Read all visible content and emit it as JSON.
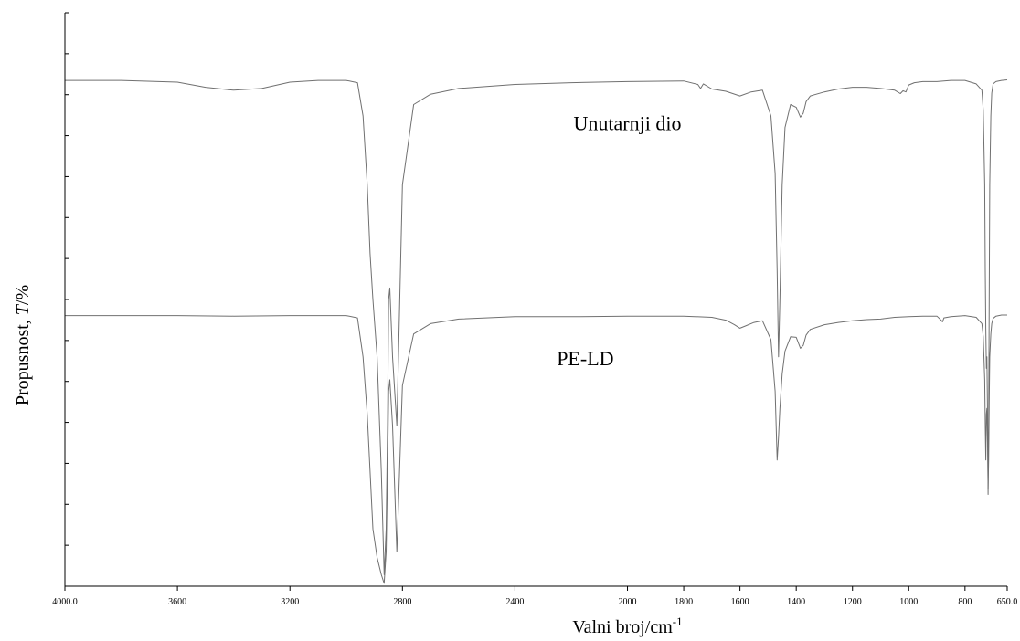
{
  "chart_data": {
    "type": "line",
    "title": "",
    "xlabel": "Valni broj/cm",
    "xlabel_superscript": "-1",
    "ylabel_prefix": "Propusnost, ",
    "ylabel_italic": "T",
    "ylabel_suffix": "/%",
    "xlim": [
      4000.0,
      650.0
    ],
    "ylim": [
      0,
      100
    ],
    "x_reversed": true,
    "x_ticks": [
      4000,
      3600,
      3200,
      2800,
      2400,
      2000,
      1800,
      1600,
      1400,
      1200,
      1000,
      800,
      650
    ],
    "x_tick_labels": [
      "4000.0",
      "3600",
      "3200",
      "2800",
      "2400",
      "2000",
      "1800",
      "1600",
      "1400",
      "1200",
      "1000",
      "800",
      "650.0"
    ],
    "y_tick_labels_shown": false,
    "y_tick_count": 14,
    "grid": false,
    "legend": "none",
    "line_color": "#707070",
    "series": [
      {
        "name": "Unutarnji dio",
        "x": [
          4000,
          3800,
          3600,
          3500,
          3400,
          3300,
          3200,
          3100,
          3000,
          2960,
          2940,
          2925,
          2915,
          2905,
          2890,
          2875,
          2865,
          2858,
          2853,
          2849,
          2845,
          2835,
          2820,
          2800,
          2760,
          2700,
          2600,
          2400,
          2200,
          2000,
          1800,
          1750,
          1740,
          1730,
          1700,
          1650,
          1600,
          1560,
          1520,
          1490,
          1475,
          1468,
          1463,
          1458,
          1450,
          1440,
          1420,
          1400,
          1385,
          1375,
          1365,
          1350,
          1300,
          1250,
          1200,
          1150,
          1100,
          1050,
          1030,
          1020,
          1010,
          1000,
          980,
          950,
          900,
          850,
          800,
          760,
          740,
          735,
          730,
          728,
          726,
          724,
          722,
          720,
          718,
          716,
          714,
          712,
          708,
          705,
          700,
          690,
          670,
          650
        ],
        "y": [
          88.2,
          88.2,
          87.9,
          87.0,
          86.5,
          86.8,
          87.9,
          88.2,
          88.2,
          87.8,
          82,
          70,
          58,
          50,
          40,
          20,
          2,
          10,
          28,
          50,
          52,
          40,
          28,
          70,
          84,
          85.8,
          86.8,
          87.5,
          87.8,
          88.0,
          88.1,
          87.5,
          86.8,
          87.6,
          86.7,
          86.3,
          85.5,
          86.2,
          86.5,
          82,
          72,
          55,
          40,
          50,
          70,
          80,
          84,
          83.5,
          81.8,
          82.5,
          84.5,
          85.5,
          86.2,
          86.7,
          87.0,
          87.0,
          86.8,
          86.5,
          85.9,
          86.4,
          86.2,
          87.4,
          87.8,
          88.0,
          88.0,
          88.2,
          88.2,
          87.6,
          86.5,
          83,
          70,
          55,
          45,
          38,
          40,
          30,
          16,
          28,
          50,
          70,
          82,
          86,
          87.6,
          88.0,
          88.2,
          88.3
        ]
      },
      {
        "name": "PE-LD",
        "x": [
          4000,
          3800,
          3600,
          3400,
          3200,
          3100,
          3000,
          2960,
          2940,
          2925,
          2915,
          2905,
          2890,
          2875,
          2865,
          2858,
          2853,
          2849,
          2845,
          2835,
          2820,
          2800,
          2760,
          2700,
          2600,
          2400,
          2200,
          2000,
          1800,
          1700,
          1650,
          1620,
          1600,
          1580,
          1550,
          1520,
          1490,
          1475,
          1468,
          1463,
          1458,
          1450,
          1440,
          1420,
          1400,
          1385,
          1375,
          1365,
          1350,
          1300,
          1250,
          1200,
          1150,
          1100,
          1050,
          1000,
          950,
          900,
          885,
          880,
          875,
          850,
          800,
          760,
          740,
          735,
          730,
          728,
          726,
          724,
          722,
          720,
          718,
          716,
          714,
          712,
          708,
          705,
          700,
          690,
          670,
          650
        ],
        "y": [
          47.2,
          47.2,
          47.2,
          47.1,
          47.2,
          47.2,
          47.2,
          46.8,
          40,
          30,
          20,
          10,
          5,
          2,
          0.5,
          6,
          20,
          34,
          36,
          28,
          6,
          35,
          44,
          45.8,
          46.6,
          47.0,
          47.0,
          47.1,
          47.1,
          46.9,
          46.4,
          45.6,
          45.0,
          45.4,
          46.0,
          46.3,
          43,
          34,
          22,
          26,
          31,
          37,
          41,
          43.5,
          43.4,
          41.5,
          42,
          43.8,
          44.8,
          45.6,
          46.0,
          46.3,
          46.5,
          46.6,
          46.9,
          47.0,
          47.1,
          47.1,
          46.4,
          46.1,
          46.8,
          47.0,
          47.2,
          46.9,
          45.8,
          43.5,
          36,
          28,
          22,
          30,
          31,
          25,
          17,
          22,
          32,
          40,
          44,
          45.8,
          46.7,
          47.1,
          47.3,
          47.3
        ]
      }
    ],
    "annotations": [
      {
        "text": "Unutarnji dio",
        "x": 2000,
        "y": 79.5
      },
      {
        "text": "PE-LD",
        "x": 2150,
        "y": 38.5
      }
    ]
  }
}
